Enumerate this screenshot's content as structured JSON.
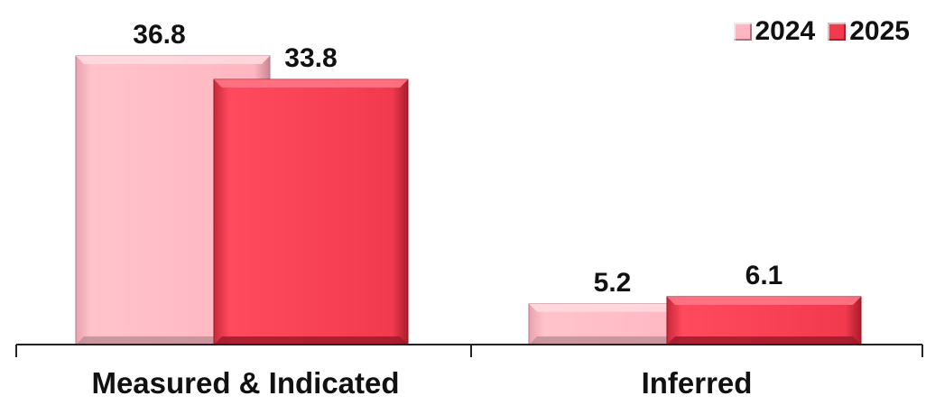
{
  "chart_data": {
    "type": "bar",
    "title": "",
    "xlabel": "",
    "ylabel": "",
    "categories": [
      "Measured & Indicated",
      "Inferred"
    ],
    "series": [
      {
        "name": "2024",
        "values": [
          36.8,
          5.2
        ],
        "labels": [
          "36.8",
          "5.2"
        ]
      },
      {
        "name": "2025",
        "values": [
          33.8,
          6.1
        ],
        "labels": [
          "33.8",
          "6.1"
        ]
      }
    ],
    "ylim": [
      0,
      40
    ],
    "grid": false,
    "legend_position": "top-right",
    "colors": {
      "2024": "#ffb6c1",
      "2025": "#f23a4e"
    }
  }
}
